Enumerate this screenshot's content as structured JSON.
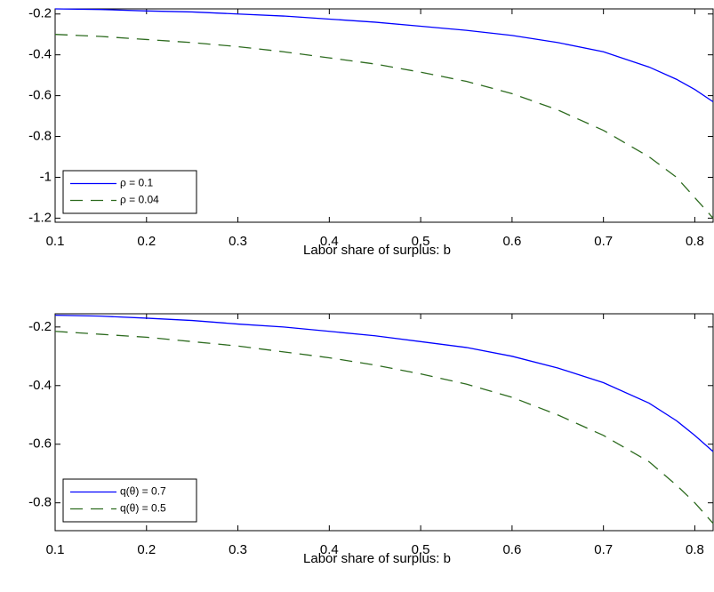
{
  "chart_data": [
    {
      "type": "line",
      "xlabel": "Labor share of surplus: b",
      "x": [
        0.1,
        0.15,
        0.2,
        0.25,
        0.3,
        0.35,
        0.4,
        0.45,
        0.5,
        0.55,
        0.6,
        0.65,
        0.7,
        0.75,
        0.78,
        0.8,
        0.82
      ],
      "series": [
        {
          "name": "ρ = 0.1",
          "color": "#0000ff",
          "style": "solid",
          "values": [
            -0.175,
            -0.178,
            -0.185,
            -0.19,
            -0.2,
            -0.21,
            -0.225,
            -0.24,
            -0.26,
            -0.28,
            -0.305,
            -0.34,
            -0.385,
            -0.46,
            -0.52,
            -0.57,
            -0.63
          ]
        },
        {
          "name": "ρ = 0.04",
          "color": "#2d6b1f",
          "style": "dashed",
          "values": [
            -0.3,
            -0.31,
            -0.325,
            -0.34,
            -0.36,
            -0.385,
            -0.415,
            -0.445,
            -0.485,
            -0.53,
            -0.59,
            -0.67,
            -0.77,
            -0.9,
            -1.0,
            -1.1,
            -1.2
          ]
        }
      ],
      "xlim": [
        0.1,
        0.82
      ],
      "ylim": [
        -1.22,
        -0.175
      ],
      "xticks": [
        0.1,
        0.2,
        0.3,
        0.4,
        0.5,
        0.6,
        0.7,
        0.8
      ],
      "yticks": [
        -0.2,
        -0.4,
        -0.6,
        -0.8,
        -1,
        -1.2
      ],
      "legend": "lower left",
      "grid": false
    },
    {
      "type": "line",
      "xlabel": "Labor share of surplus: b",
      "x": [
        0.1,
        0.15,
        0.2,
        0.25,
        0.3,
        0.35,
        0.4,
        0.45,
        0.5,
        0.55,
        0.6,
        0.65,
        0.7,
        0.75,
        0.78,
        0.8,
        0.82
      ],
      "series": [
        {
          "name": "q(θ) = 0.7",
          "color": "#0000ff",
          "style": "solid",
          "values": [
            -0.16,
            -0.163,
            -0.17,
            -0.178,
            -0.19,
            -0.2,
            -0.215,
            -0.23,
            -0.25,
            -0.27,
            -0.3,
            -0.34,
            -0.39,
            -0.46,
            -0.52,
            -0.57,
            -0.625
          ]
        },
        {
          "name": "q(θ) = 0.5",
          "color": "#2d6b1f",
          "style": "dashed",
          "values": [
            -0.215,
            -0.225,
            -0.235,
            -0.25,
            -0.265,
            -0.285,
            -0.305,
            -0.33,
            -0.36,
            -0.395,
            -0.44,
            -0.5,
            -0.57,
            -0.66,
            -0.74,
            -0.8,
            -0.87
          ]
        }
      ],
      "xlim": [
        0.1,
        0.82
      ],
      "ylim": [
        -0.895,
        -0.155
      ],
      "xticks": [
        0.1,
        0.2,
        0.3,
        0.4,
        0.5,
        0.6,
        0.7,
        0.8
      ],
      "yticks": [
        -0.2,
        -0.4,
        -0.6,
        -0.8
      ],
      "legend": "lower left",
      "grid": false
    }
  ]
}
